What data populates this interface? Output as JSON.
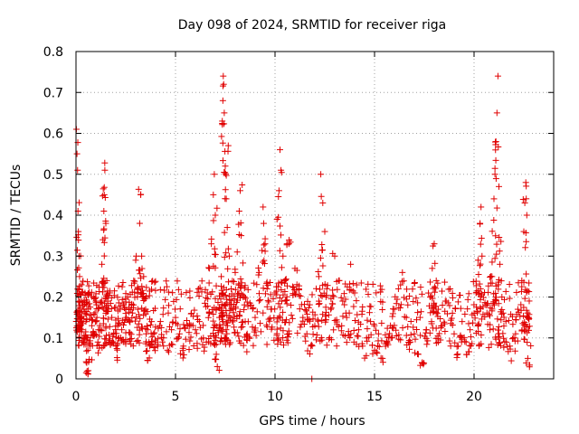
{
  "chart_data": {
    "type": "scatter",
    "title": "Day 098 of 2024, SRMTID for receiver riga",
    "xlabel": "GPS time / hours",
    "ylabel": "SRMTID / TECUs",
    "xlim": [
      0,
      24
    ],
    "ylim": [
      0,
      0.8
    ],
    "xticks": [
      0,
      5,
      10,
      15,
      20
    ],
    "xtick_labels": [
      "0",
      "5",
      "10",
      "15",
      "20"
    ],
    "yticks": [
      0,
      0.1,
      0.2,
      0.3,
      0.4,
      0.5,
      0.6,
      0.7,
      0.8
    ],
    "ytick_labels": [
      "0",
      "0.1",
      "0.2",
      "0.3",
      "0.4",
      "0.5",
      "0.6",
      "0.7",
      "0.8"
    ],
    "grid": true,
    "marker": "plus",
    "color": "#e00000",
    "series": [
      {
        "name": "SRMTID",
        "points": [
          [
            0.02,
            0.61
          ],
          [
            0.05,
            0.55
          ],
          [
            0.08,
            0.51
          ],
          [
            0.1,
            0.41
          ],
          [
            0.12,
            0.36
          ],
          [
            0.15,
            0.3
          ],
          [
            0.18,
            0.25
          ],
          [
            0.2,
            0.19
          ],
          [
            0.25,
            0.15
          ],
          [
            0.3,
            0.12
          ],
          [
            0.35,
            0.09
          ],
          [
            0.4,
            0.17
          ],
          [
            0.45,
            0.21
          ],
          [
            0.5,
            0.14
          ],
          [
            0.55,
            0.1
          ],
          [
            0.6,
            0.07
          ],
          [
            0.62,
            0.02
          ],
          [
            0.7,
            0.08
          ],
          [
            0.8,
            0.13
          ],
          [
            0.9,
            0.11
          ],
          [
            1.0,
            0.19
          ],
          [
            1.05,
            0.15
          ],
          [
            1.1,
            0.09
          ],
          [
            1.2,
            0.12
          ],
          [
            1.3,
            0.28
          ],
          [
            1.35,
            0.34
          ],
          [
            1.4,
            0.41
          ],
          [
            1.42,
            0.45
          ],
          [
            1.45,
            0.51
          ],
          [
            1.5,
            0.38
          ],
          [
            1.55,
            0.24
          ],
          [
            1.6,
            0.18
          ],
          [
            1.7,
            0.21
          ],
          [
            1.8,
            0.15
          ],
          [
            1.9,
            0.11
          ],
          [
            2.0,
            0.08
          ],
          [
            2.1,
            0.13
          ],
          [
            2.2,
            0.17
          ],
          [
            2.3,
            0.12
          ],
          [
            2.4,
            0.09
          ],
          [
            2.5,
            0.16
          ],
          [
            2.6,
            0.2
          ],
          [
            2.7,
            0.14
          ],
          [
            2.8,
            0.18
          ],
          [
            2.9,
            0.24
          ],
          [
            3.0,
            0.29
          ],
          [
            3.1,
            0.22
          ],
          [
            3.2,
            0.38
          ],
          [
            3.25,
            0.45
          ],
          [
            3.3,
            0.3
          ],
          [
            3.4,
            0.25
          ],
          [
            3.5,
            0.17
          ],
          [
            3.6,
            0.12
          ],
          [
            3.7,
            0.08
          ],
          [
            3.8,
            0.14
          ],
          [
            3.9,
            0.11
          ],
          [
            4.0,
            0.09
          ],
          [
            4.2,
            0.13
          ],
          [
            4.4,
            0.1
          ],
          [
            4.6,
            0.07
          ],
          [
            4.8,
            0.12
          ],
          [
            5.0,
            0.15
          ],
          [
            5.2,
            0.11
          ],
          [
            5.4,
            0.08
          ],
          [
            5.6,
            0.13
          ],
          [
            5.8,
            0.16
          ],
          [
            6.0,
            0.12
          ],
          [
            6.2,
            0.14
          ],
          [
            6.4,
            0.1
          ],
          [
            6.6,
            0.21
          ],
          [
            6.7,
            0.27
          ],
          [
            6.8,
            0.33
          ],
          [
            6.9,
            0.45
          ],
          [
            6.95,
            0.5
          ],
          [
            7.0,
            0.4
          ],
          [
            7.05,
            0.06
          ],
          [
            7.1,
            0.03
          ],
          [
            7.2,
            0.15
          ],
          [
            7.3,
            0.25
          ],
          [
            7.35,
            0.63
          ],
          [
            7.38,
            0.68
          ],
          [
            7.4,
            0.74
          ],
          [
            7.42,
            0.72
          ],
          [
            7.45,
            0.65
          ],
          [
            7.5,
            0.52
          ],
          [
            7.55,
            0.44
          ],
          [
            7.6,
            0.37
          ],
          [
            7.65,
            0.57
          ],
          [
            7.7,
            0.3
          ],
          [
            7.8,
            0.22
          ],
          [
            7.9,
            0.17
          ],
          [
            8.0,
            0.26
          ],
          [
            8.1,
            0.31
          ],
          [
            8.2,
            0.41
          ],
          [
            8.25,
            0.46
          ],
          [
            8.3,
            0.35
          ],
          [
            8.4,
            0.2
          ],
          [
            8.5,
            0.14
          ],
          [
            8.6,
            0.11
          ],
          [
            8.8,
            0.18
          ],
          [
            9.0,
            0.15
          ],
          [
            9.2,
            0.26
          ],
          [
            9.4,
            0.42
          ],
          [
            9.5,
            0.33
          ],
          [
            9.6,
            0.22
          ],
          [
            9.8,
            0.17
          ],
          [
            10.0,
            0.21
          ],
          [
            10.1,
            0.39
          ],
          [
            10.2,
            0.46
          ],
          [
            10.25,
            0.56
          ],
          [
            10.3,
            0.51
          ],
          [
            10.4,
            0.3
          ],
          [
            10.5,
            0.24
          ],
          [
            10.6,
            0.33
          ],
          [
            10.7,
            0.33
          ],
          [
            10.8,
            0.18
          ],
          [
            11.0,
            0.27
          ],
          [
            11.2,
            0.22
          ],
          [
            11.4,
            0.15
          ],
          [
            11.6,
            0.11
          ],
          [
            11.8,
            0.08
          ],
          [
            11.85,
            0.0
          ],
          [
            12.0,
            0.13
          ],
          [
            12.2,
            0.25
          ],
          [
            12.3,
            0.5
          ],
          [
            12.4,
            0.43
          ],
          [
            12.5,
            0.36
          ],
          [
            12.6,
            0.22
          ],
          [
            12.8,
            0.17
          ],
          [
            13.0,
            0.3
          ],
          [
            13.2,
            0.24
          ],
          [
            13.4,
            0.19
          ],
          [
            13.6,
            0.15
          ],
          [
            13.8,
            0.28
          ],
          [
            14.0,
            0.21
          ],
          [
            14.2,
            0.12
          ],
          [
            14.4,
            0.08
          ],
          [
            14.6,
            0.1
          ],
          [
            14.8,
            0.14
          ],
          [
            15.0,
            0.07
          ],
          [
            15.2,
            0.11
          ],
          [
            15.4,
            0.05
          ],
          [
            15.6,
            0.09
          ],
          [
            15.8,
            0.13
          ],
          [
            16.0,
            0.17
          ],
          [
            16.2,
            0.22
          ],
          [
            16.4,
            0.26
          ],
          [
            16.6,
            0.15
          ],
          [
            16.8,
            0.09
          ],
          [
            17.0,
            0.11
          ],
          [
            17.2,
            0.06
          ],
          [
            17.4,
            0.04
          ],
          [
            17.6,
            0.12
          ],
          [
            17.8,
            0.2
          ],
          [
            17.9,
            0.27
          ],
          [
            18.0,
            0.33
          ],
          [
            18.1,
            0.24
          ],
          [
            18.2,
            0.17
          ],
          [
            18.4,
            0.13
          ],
          [
            18.6,
            0.19
          ],
          [
            18.8,
            0.22
          ],
          [
            19.0,
            0.11
          ],
          [
            19.2,
            0.08
          ],
          [
            19.4,
            0.14
          ],
          [
            19.6,
            0.09
          ],
          [
            19.8,
            0.12
          ],
          [
            20.0,
            0.16
          ],
          [
            20.1,
            0.21
          ],
          [
            20.2,
            0.29
          ],
          [
            20.3,
            0.38
          ],
          [
            20.35,
            0.42
          ],
          [
            20.4,
            0.3
          ],
          [
            20.6,
            0.18
          ],
          [
            20.8,
            0.12
          ],
          [
            20.9,
            0.25
          ],
          [
            21.0,
            0.44
          ],
          [
            21.05,
            0.5
          ],
          [
            21.1,
            0.58
          ],
          [
            21.15,
            0.65
          ],
          [
            21.2,
            0.74
          ],
          [
            21.25,
            0.47
          ],
          [
            21.3,
            0.28
          ],
          [
            21.4,
            0.2
          ],
          [
            21.6,
            0.14
          ],
          [
            21.8,
            0.08
          ],
          [
            22.0,
            0.1
          ],
          [
            22.2,
            0.17
          ],
          [
            22.4,
            0.24
          ],
          [
            22.5,
            0.36
          ],
          [
            22.55,
            0.43
          ],
          [
            22.6,
            0.48
          ],
          [
            22.65,
            0.4
          ],
          [
            22.7,
            0.05
          ],
          [
            22.75,
            0.15
          ]
        ]
      }
    ]
  }
}
